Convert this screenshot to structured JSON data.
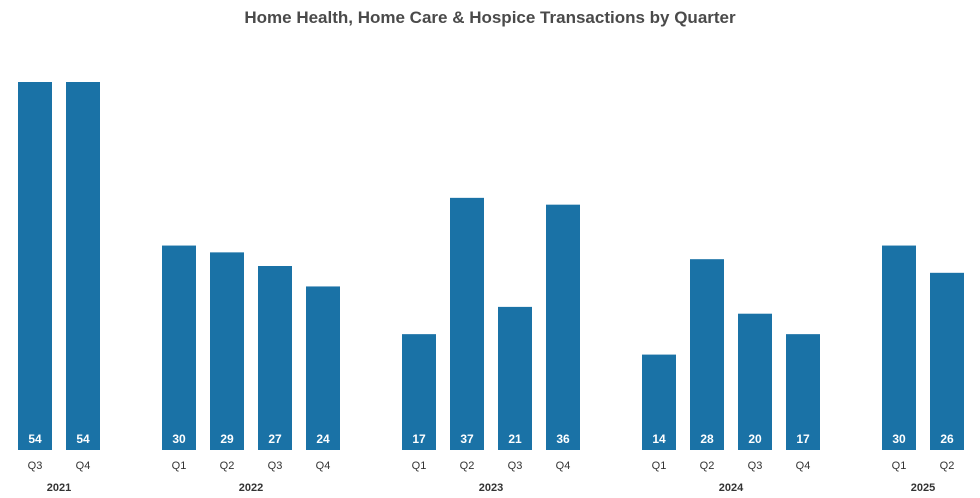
{
  "chart_data": {
    "type": "bar",
    "title": "Home Health, Home Care & Hospice Transactions by Quarter",
    "xlabel": "",
    "ylabel": "",
    "ylim": [
      0,
      54
    ],
    "grid": false,
    "legend": "none",
    "bar_color": "#1a72a6",
    "groups": [
      {
        "year": "2021",
        "quarters": [
          "Q3",
          "Q4"
        ],
        "values": [
          54,
          54
        ]
      },
      {
        "year": "2022",
        "quarters": [
          "Q1",
          "Q2",
          "Q3",
          "Q4"
        ],
        "values": [
          30,
          29,
          27,
          24
        ]
      },
      {
        "year": "2023",
        "quarters": [
          "Q1",
          "Q2",
          "Q3",
          "Q4"
        ],
        "values": [
          17,
          37,
          21,
          36
        ]
      },
      {
        "year": "2024",
        "quarters": [
          "Q1",
          "Q2",
          "Q3",
          "Q4"
        ],
        "values": [
          14,
          28,
          20,
          17
        ]
      },
      {
        "year": "2025",
        "quarters": [
          "Q1",
          "Q2"
        ],
        "values": [
          30,
          26
        ]
      }
    ]
  }
}
